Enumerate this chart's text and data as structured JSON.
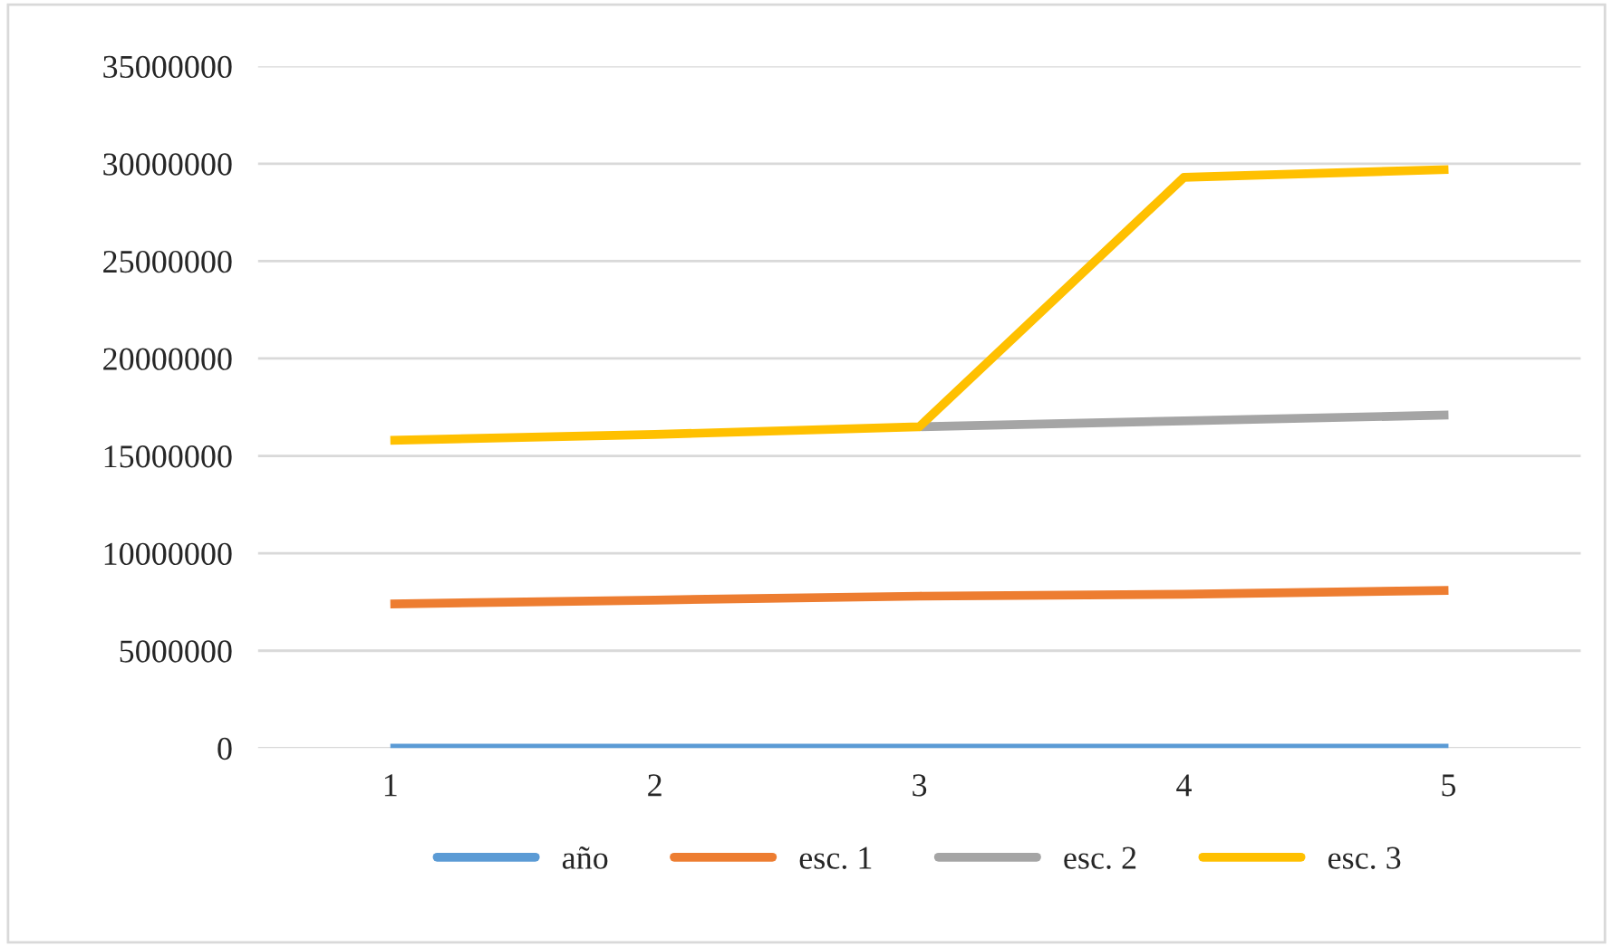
{
  "chart_data": {
    "type": "line",
    "categories": [
      "1",
      "2",
      "3",
      "4",
      "5"
    ],
    "series": [
      {
        "name": "año",
        "color": "#5b9bd5",
        "values": [
          0,
          0,
          0,
          0,
          0
        ]
      },
      {
        "name": "esc. 1",
        "color": "#ed7d31",
        "values": [
          7400000,
          7600000,
          7800000,
          7900000,
          8100000
        ]
      },
      {
        "name": "esc. 2",
        "color": "#a5a5a5",
        "values": [
          null,
          null,
          16500000,
          16800000,
          17100000
        ]
      },
      {
        "name": "esc. 3",
        "color": "#ffc000",
        "values": [
          15800000,
          16100000,
          16500000,
          29300000,
          29700000
        ]
      }
    ],
    "ylim": [
      0,
      35000000
    ],
    "yticks": [
      0,
      5000000,
      10000000,
      15000000,
      20000000,
      25000000,
      30000000,
      35000000
    ],
    "grid": "y",
    "legend": "bottom",
    "marker": "none",
    "line_style": "solid"
  }
}
